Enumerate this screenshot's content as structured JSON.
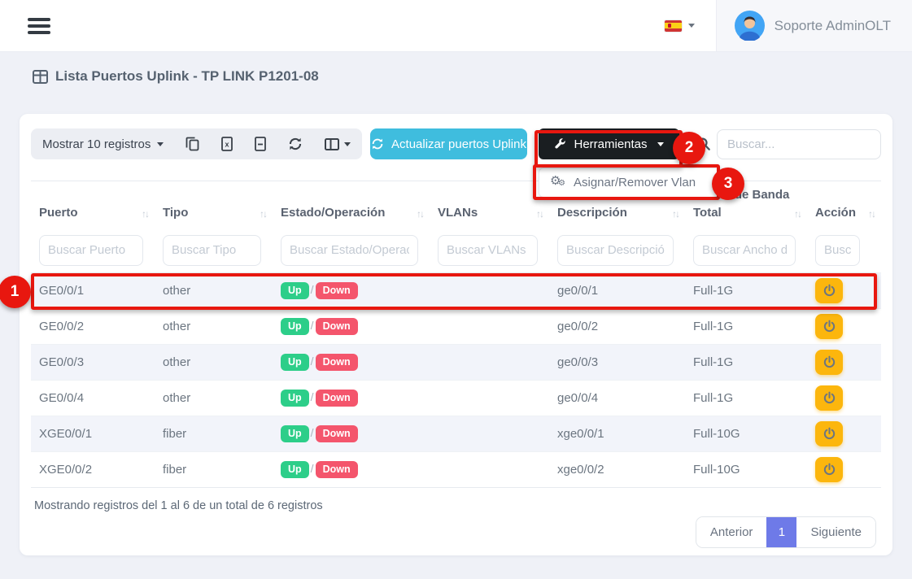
{
  "colors": {
    "accent_cyan": "#3fbdde",
    "dark_button": "#1a1e21",
    "warning_yellow": "#fcb60d",
    "badge_up_green": "#2dce89",
    "badge_down_red": "#f4556c",
    "annotation_red": "#e8170f",
    "pagination_active": "#6e7ae8",
    "page_background": "#eff1f7"
  },
  "navbar": {
    "user_name": "Soporte AdminOLT"
  },
  "page_header": {
    "title": "Lista Puertos Uplink - TP LINK P1201-08"
  },
  "toolbar": {
    "length_menu_label": "Mostrar 10 registros",
    "icon_buttons": [
      "copy-icon",
      "excel-icon",
      "file-icon",
      "refresh-icon",
      "column-visibility-icon"
    ],
    "update_button_label": "Actualizar puertos Uplink",
    "tools_button_label": "Herramientas",
    "tools_menu_items": [
      {
        "label": "Asignar/Remover Vlan",
        "icon": "gears-icon"
      }
    ],
    "search_placeholder": "Buscar..."
  },
  "table": {
    "sort_icon": "↑↓",
    "estado_separator": "/",
    "columns": [
      {
        "key": "puerto",
        "label": "Puerto",
        "filter_placeholder": "Buscar Puerto"
      },
      {
        "key": "tipo",
        "label": "Tipo",
        "filter_placeholder": "Buscar Tipo"
      },
      {
        "key": "estado",
        "label": "Estado/Operación",
        "filter_placeholder": "Buscar Estado/Operac"
      },
      {
        "key": "vlans",
        "label": "VLANs",
        "filter_placeholder": "Buscar VLANs"
      },
      {
        "key": "descripcion",
        "label": "Descripción",
        "filter_placeholder": "Buscar Descripción"
      },
      {
        "key": "ancho",
        "label": "Ancho de Banda Total",
        "filter_placeholder": "Buscar Ancho d"
      },
      {
        "key": "accion",
        "label": "Acción",
        "filter_placeholder": "Busca"
      }
    ],
    "rows": [
      {
        "puerto": "GE0/0/1",
        "tipo": "other",
        "estado_up": "Up",
        "estado_down": "Down",
        "vlans": "",
        "descripcion": "ge0/0/1",
        "ancho": "Full-1G"
      },
      {
        "puerto": "GE0/0/2",
        "tipo": "other",
        "estado_up": "Up",
        "estado_down": "Down",
        "vlans": "",
        "descripcion": "ge0/0/2",
        "ancho": "Full-1G"
      },
      {
        "puerto": "GE0/0/3",
        "tipo": "other",
        "estado_up": "Up",
        "estado_down": "Down",
        "vlans": "",
        "descripcion": "ge0/0/3",
        "ancho": "Full-1G"
      },
      {
        "puerto": "GE0/0/4",
        "tipo": "other",
        "estado_up": "Up",
        "estado_down": "Down",
        "vlans": "",
        "descripcion": "ge0/0/4",
        "ancho": "Full-1G"
      },
      {
        "puerto": "XGE0/0/1",
        "tipo": "fiber",
        "estado_up": "Up",
        "estado_down": "Down",
        "vlans": "",
        "descripcion": "xge0/0/1",
        "ancho": "Full-10G"
      },
      {
        "puerto": "XGE0/0/2",
        "tipo": "fiber",
        "estado_up": "Up",
        "estado_down": "Down",
        "vlans": "",
        "descripcion": "xge0/0/2",
        "ancho": "Full-10G"
      }
    ]
  },
  "footer": {
    "info": "Mostrando registros del 1 al 6 de un total de 6 registros",
    "pagination": {
      "previous_label": "Anterior",
      "current_page": "1",
      "next_label": "Siguiente"
    }
  },
  "annotations": {
    "steps": [
      "1",
      "2",
      "3"
    ]
  }
}
